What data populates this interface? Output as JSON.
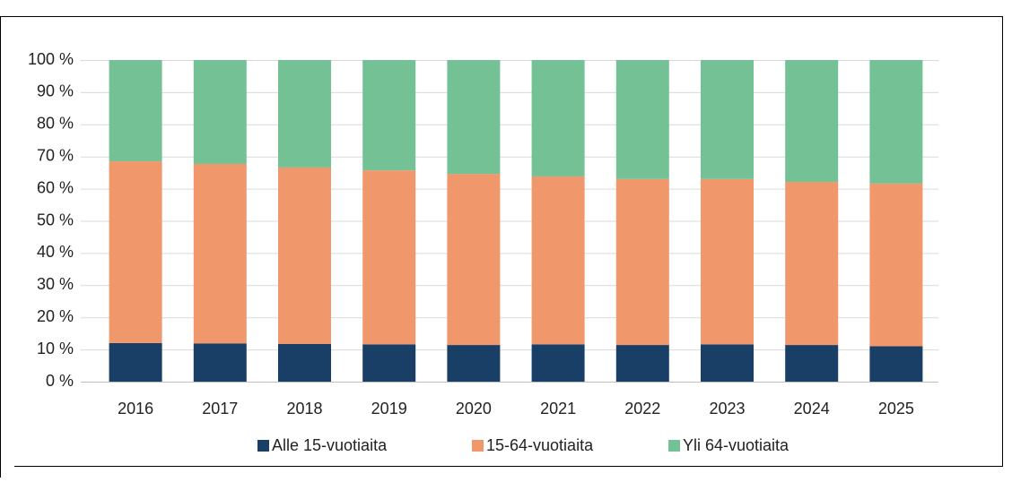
{
  "chart_data": {
    "type": "stacked_bar",
    "categories": [
      "2016",
      "2017",
      "2018",
      "2019",
      "2020",
      "2021",
      "2022",
      "2023",
      "2024",
      "2025"
    ],
    "series": [
      {
        "name": "Alle 15-vuotiaita",
        "color": "#1a3f66",
        "values": [
          12.0,
          11.9,
          11.7,
          11.6,
          11.4,
          11.6,
          11.4,
          11.6,
          11.4,
          11.0
        ]
      },
      {
        "name": "15-64-vuotiaita",
        "color": "#f0976c",
        "values": [
          56.5,
          55.8,
          54.9,
          54.1,
          53.2,
          52.2,
          51.6,
          51.4,
          50.7,
          50.6
        ]
      },
      {
        "name": "Yli 64-vuotiaita",
        "color": "#74c195",
        "values": [
          31.5,
          32.3,
          33.4,
          34.3,
          35.4,
          36.2,
          37.0,
          37.0,
          37.9,
          38.4
        ]
      }
    ],
    "ylim": [
      0,
      100
    ],
    "yticks": [
      {
        "value": 0,
        "label": "0 %"
      },
      {
        "value": 10,
        "label": "10 %"
      },
      {
        "value": 20,
        "label": "20 %"
      },
      {
        "value": 30,
        "label": "30 %"
      },
      {
        "value": 40,
        "label": "40 %"
      },
      {
        "value": 50,
        "label": "50 %"
      },
      {
        "value": 60,
        "label": "60 %"
      },
      {
        "value": 70,
        "label": "70 %"
      },
      {
        "value": 80,
        "label": "80 %"
      },
      {
        "value": 90,
        "label": "90 %"
      },
      {
        "value": 100,
        "label": "100 %"
      }
    ],
    "grid": true,
    "legend": "bottom"
  }
}
